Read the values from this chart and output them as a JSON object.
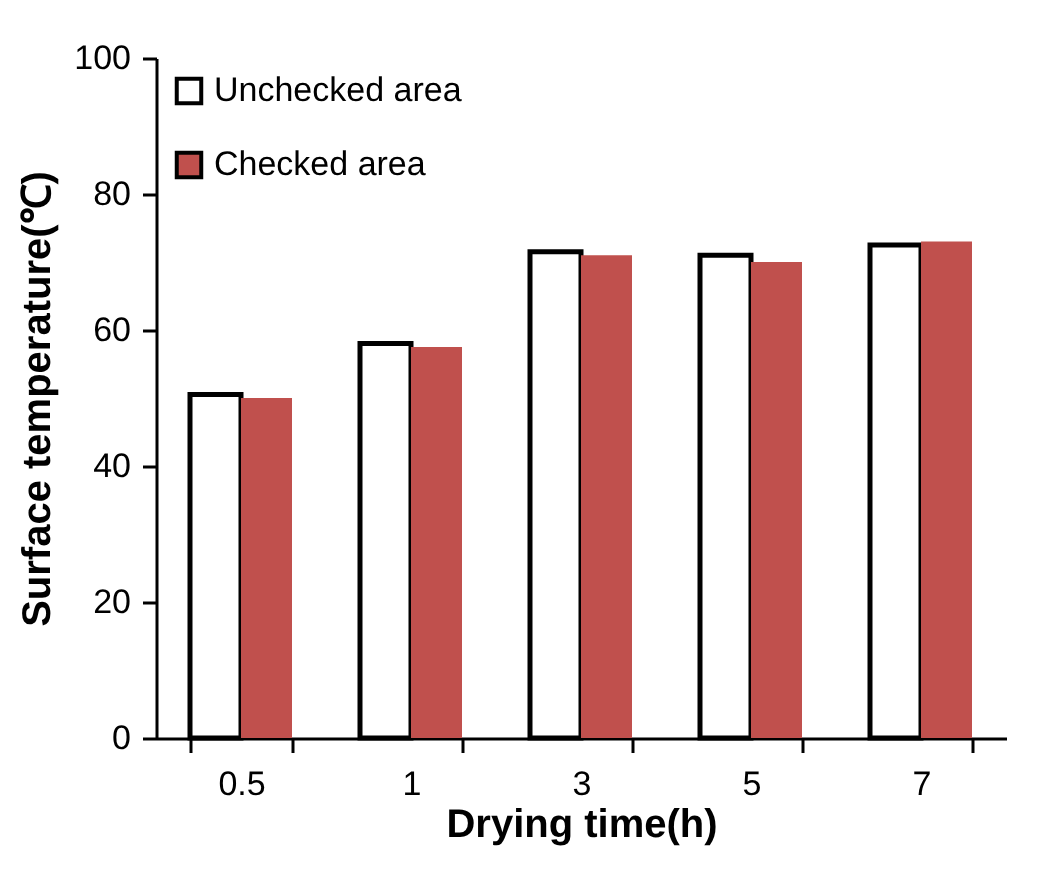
{
  "chart_data": {
    "type": "bar",
    "xlabel": "Drying time(h)",
    "ylabel": "Surface temperature(℃)",
    "categories": [
      "0.5",
      "1",
      "3",
      "5",
      "7"
    ],
    "series": [
      {
        "name": "Unchecked area",
        "color": "#ffffff",
        "values": [
          50.5,
          58,
          71.5,
          71,
          72.5
        ]
      },
      {
        "name": "Checked area",
        "color": "#c0504d",
        "values": [
          50,
          57.5,
          71,
          70,
          73
        ]
      }
    ],
    "ylim": [
      0,
      100
    ],
    "yticks": [
      0,
      20,
      40,
      60,
      80,
      100
    ],
    "grid": false,
    "legend": "top left"
  }
}
